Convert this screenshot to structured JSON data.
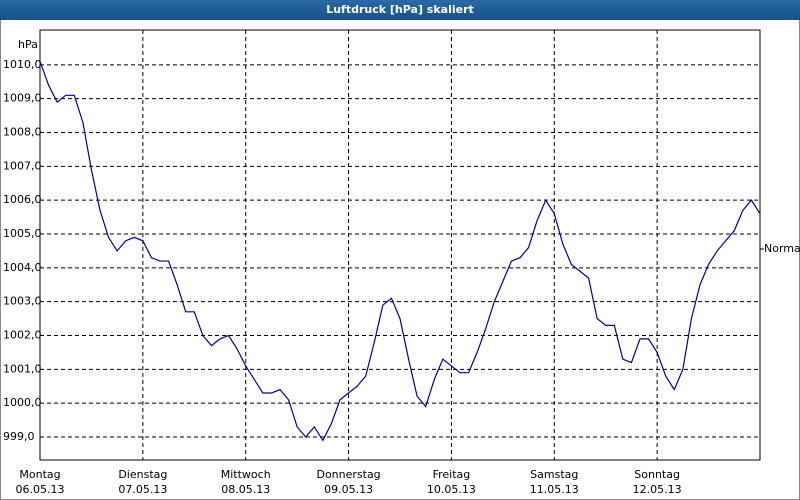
{
  "chart_data": {
    "type": "line",
    "title": "Luftdruck [hPa] skaliert",
    "y_label": "hPa",
    "right_label": "Normal",
    "x_days": [
      {
        "name": "Montag",
        "date": "06.05.13"
      },
      {
        "name": "Dienstag",
        "date": "07.05.13"
      },
      {
        "name": "Mittwoch",
        "date": "08.05.13"
      },
      {
        "name": "Donnerstag",
        "date": "09.05.13"
      },
      {
        "name": "Freitag",
        "date": "10.05.13"
      },
      {
        "name": "Samstag",
        "date": "11.05.13"
      },
      {
        "name": "Sonntag",
        "date": "12.05.13"
      }
    ],
    "xlim": [
      0,
      168
    ],
    "xticks": [
      0,
      24,
      48,
      72,
      96,
      120,
      144
    ],
    "ylim": [
      998.32,
      1011.03
    ],
    "yticks": [
      {
        "value": 999,
        "label": "999,0"
      },
      {
        "value": 1000,
        "label": "1000,0"
      },
      {
        "value": 1001,
        "label": "1001,0"
      },
      {
        "value": 1002,
        "label": "1002,0"
      },
      {
        "value": 1003,
        "label": "1003,0"
      },
      {
        "value": 1004,
        "label": "1004,0"
      },
      {
        "value": 1005,
        "label": "1005,0"
      },
      {
        "value": 1006,
        "label": "1006,0"
      },
      {
        "value": 1007,
        "label": "1007,0"
      },
      {
        "value": 1008,
        "label": "1008,0"
      },
      {
        "value": 1009,
        "label": "1009,0"
      },
      {
        "value": 1010,
        "label": "1010,0"
      }
    ],
    "grid": true,
    "x": [
      0,
      2,
      4,
      6,
      8,
      10,
      12,
      14,
      16,
      18,
      20,
      22,
      24,
      26,
      28,
      30,
      32,
      34,
      36,
      38,
      40,
      42,
      44,
      46,
      48,
      50,
      52,
      54,
      56,
      58,
      60,
      62,
      64,
      66,
      68,
      70,
      72,
      74,
      76,
      78,
      80,
      82,
      84,
      86,
      88,
      90,
      92,
      94,
      96,
      98,
      100,
      102,
      104,
      106,
      108,
      110,
      112,
      114,
      116,
      118,
      120,
      122,
      124,
      126,
      128,
      130,
      132,
      134,
      136,
      138,
      140,
      142,
      144,
      146,
      148,
      150,
      152,
      154,
      156,
      158,
      160,
      162,
      164,
      166,
      168
    ],
    "series": [
      {
        "color": "#0000a0",
        "values": [
          1010.1,
          1009.4,
          1008.9,
          1009.1,
          1009.1,
          1008.3,
          1006.9,
          1005.7,
          1004.9,
          1004.5,
          1004.8,
          1004.9,
          1004.8,
          1004.3,
          1004.2,
          1004.2,
          1003.5,
          1002.7,
          1002.7,
          1002.0,
          1001.7,
          1001.9,
          1002.0,
          1001.6,
          1001.1,
          1000.7,
          1000.3,
          1000.3,
          1000.4,
          1000.1,
          999.3,
          999.0,
          999.3,
          998.9,
          999.4,
          1000.1,
          1000.3,
          1000.5,
          1000.8,
          1001.8,
          1002.9,
          1003.1,
          1002.5,
          1001.3,
          1000.2,
          999.9,
          1000.7,
          1001.3,
          1001.1,
          1000.9,
          1000.9,
          1001.5,
          1002.2,
          1003.0,
          1003.6,
          1004.2,
          1004.3,
          1004.6,
          1005.4,
          1006.0,
          1005.6,
          1004.7,
          1004.1,
          1003.9,
          1003.7,
          1002.5,
          1002.3,
          1002.3,
          1001.3,
          1001.2,
          1001.9,
          1001.9,
          1001.5,
          1000.8,
          1000.4,
          1001.0,
          1002.5,
          1003.5,
          1004.1,
          1004.5,
          1004.8,
          1005.1,
          1005.7,
          1006.0,
          1005.6
        ]
      }
    ]
  }
}
